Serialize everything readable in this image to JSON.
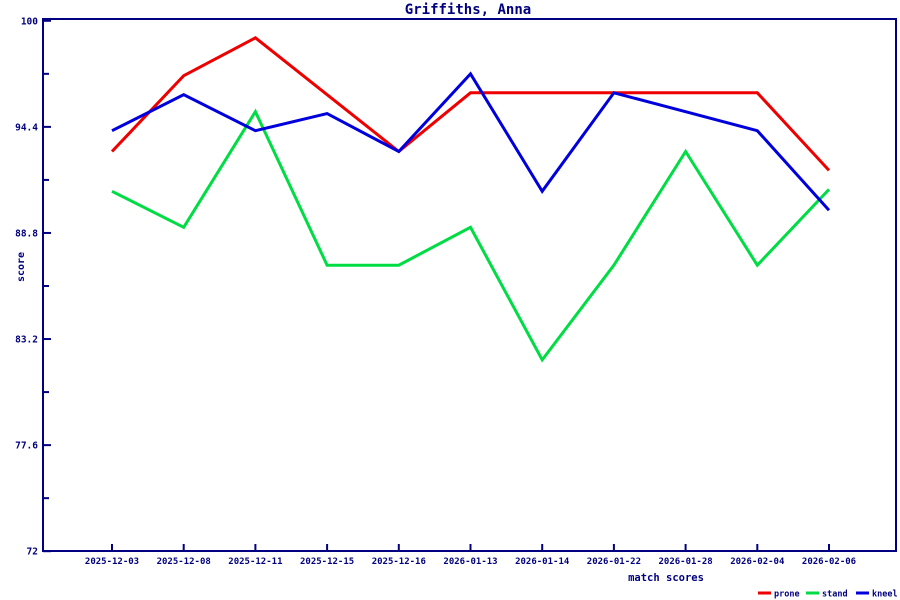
{
  "chart_data": {
    "type": "line",
    "title": "Griffiths, Anna",
    "xlabel": "match scores",
    "ylabel": "score",
    "ylim": [
      72,
      100
    ],
    "grid": false,
    "legend_position": "bottom-right-below-plot",
    "axis_color": "#000080",
    "background_color": "#ffffff",
    "y_ticks": [
      {
        "label": "100",
        "value": 100
      },
      {
        "label": "94.4",
        "value": 94.4
      },
      {
        "label": "88.8",
        "value": 88.8
      },
      {
        "label": "83.2",
        "value": 83.2
      },
      {
        "label": "77.6",
        "value": 77.6
      },
      {
        "label": "72",
        "value": 72
      }
    ],
    "categories": [
      "2025-12-03",
      "2025-12-08",
      "2025-12-11",
      "2025-12-15",
      "2025-12-16",
      "2026-01-13",
      "2026-01-14",
      "2026-01-22",
      "2026-01-28",
      "2026-02-04",
      "2026-02-06"
    ],
    "series": [
      {
        "name": "prone",
        "color": "#ee0000",
        "values": [
          93.1,
          97.1,
          99.1,
          96.1,
          93.1,
          96.2,
          96.2,
          96.2,
          96.2,
          96.2,
          92.1
        ]
      },
      {
        "name": "stand",
        "color": "#00dd44",
        "values": [
          91.0,
          89.1,
          95.2,
          87.1,
          87.1,
          89.1,
          82.1,
          87.1,
          93.1,
          87.1,
          91.1
        ]
      },
      {
        "name": "kneel",
        "color": "#0000dd",
        "values": [
          94.2,
          96.1,
          94.2,
          95.1,
          93.1,
          97.2,
          91.0,
          96.2,
          95.2,
          94.2,
          90.0
        ]
      }
    ]
  }
}
